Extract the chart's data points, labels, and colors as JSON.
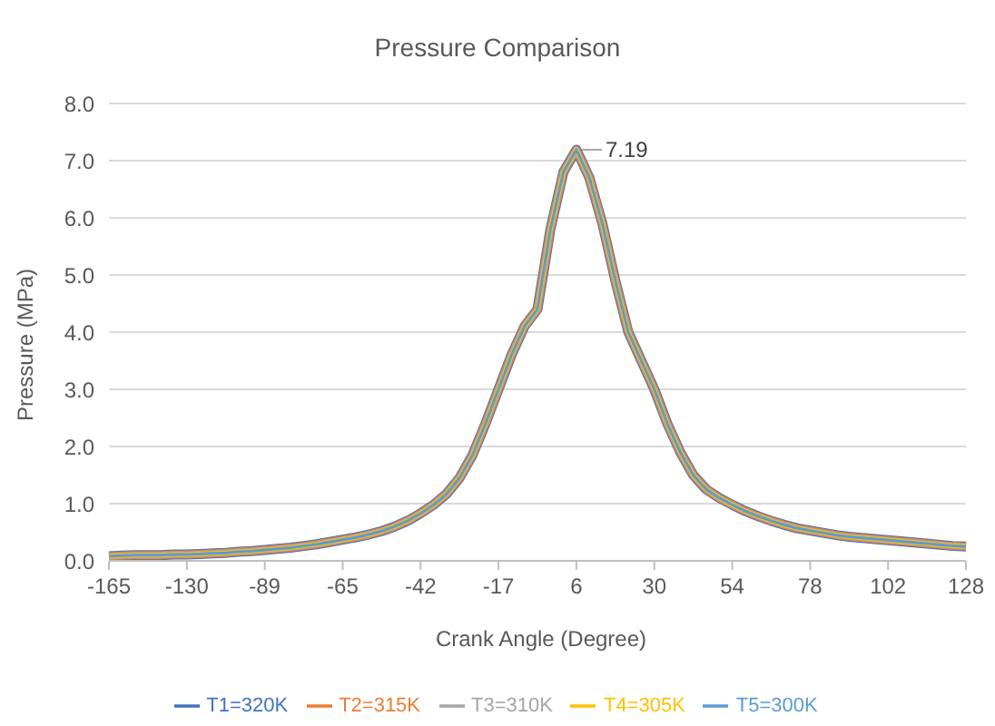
{
  "chart_data": {
    "type": "line",
    "title": "Pressure Comparison",
    "xlabel": "Crank Angle (Degree)",
    "ylabel": "Pressure (MPa)",
    "categories": [
      "-165",
      null,
      null,
      null,
      null,
      null,
      "-130",
      null,
      null,
      null,
      null,
      null,
      "-89",
      null,
      null,
      null,
      null,
      null,
      "-65",
      null,
      null,
      null,
      null,
      null,
      "-42",
      null,
      null,
      null,
      null,
      null,
      "-17",
      null,
      null,
      null,
      null,
      null,
      "6",
      null,
      null,
      null,
      null,
      null,
      "30",
      null,
      null,
      null,
      null,
      null,
      "54",
      null,
      null,
      null,
      null,
      null,
      "78",
      null,
      null,
      null,
      null,
      null,
      "102",
      null,
      null,
      null,
      null,
      null,
      "128"
    ],
    "series": [
      {
        "name": "T1=320K",
        "color": "#4472c4",
        "values": [
          0.08,
          0.09,
          0.1,
          0.1,
          0.1,
          0.11,
          0.11,
          0.12,
          0.13,
          0.14,
          0.16,
          0.17,
          0.19,
          0.21,
          0.23,
          0.26,
          0.29,
          0.33,
          0.37,
          0.41,
          0.46,
          0.52,
          0.6,
          0.7,
          0.83,
          0.98,
          1.17,
          1.45,
          1.85,
          2.4,
          3.0,
          3.6,
          4.1,
          4.4,
          5.8,
          6.8,
          7.19,
          6.7,
          5.9,
          4.9,
          4.0,
          3.5,
          3.0,
          2.4,
          1.9,
          1.5,
          1.25,
          1.1,
          0.98,
          0.87,
          0.78,
          0.7,
          0.63,
          0.57,
          0.53,
          0.49,
          0.45,
          0.42,
          0.4,
          0.38,
          0.36,
          0.34,
          0.32,
          0.3,
          0.28,
          0.26,
          0.25
        ]
      },
      {
        "name": "T2=315K",
        "color": "#ed7d31",
        "values": [
          0.08,
          0.09,
          0.1,
          0.1,
          0.1,
          0.11,
          0.11,
          0.12,
          0.13,
          0.14,
          0.16,
          0.17,
          0.19,
          0.21,
          0.23,
          0.26,
          0.29,
          0.33,
          0.37,
          0.41,
          0.46,
          0.52,
          0.6,
          0.7,
          0.83,
          0.98,
          1.17,
          1.45,
          1.85,
          2.4,
          3.0,
          3.6,
          4.1,
          4.4,
          5.8,
          6.8,
          7.19,
          6.7,
          5.9,
          4.9,
          4.0,
          3.5,
          3.0,
          2.4,
          1.9,
          1.5,
          1.25,
          1.1,
          0.98,
          0.87,
          0.78,
          0.7,
          0.63,
          0.57,
          0.53,
          0.49,
          0.45,
          0.42,
          0.4,
          0.38,
          0.36,
          0.34,
          0.32,
          0.3,
          0.28,
          0.26,
          0.25
        ]
      },
      {
        "name": "T3=310K",
        "color": "#a5a5a5",
        "values": [
          0.08,
          0.09,
          0.1,
          0.1,
          0.1,
          0.11,
          0.11,
          0.12,
          0.13,
          0.14,
          0.16,
          0.17,
          0.19,
          0.21,
          0.23,
          0.26,
          0.29,
          0.33,
          0.37,
          0.41,
          0.46,
          0.52,
          0.6,
          0.7,
          0.83,
          0.98,
          1.17,
          1.45,
          1.85,
          2.4,
          3.0,
          3.6,
          4.1,
          4.4,
          5.8,
          6.8,
          7.19,
          6.7,
          5.9,
          4.9,
          4.0,
          3.5,
          3.0,
          2.4,
          1.9,
          1.5,
          1.25,
          1.1,
          0.98,
          0.87,
          0.78,
          0.7,
          0.63,
          0.57,
          0.53,
          0.49,
          0.45,
          0.42,
          0.4,
          0.38,
          0.36,
          0.34,
          0.32,
          0.3,
          0.28,
          0.26,
          0.25
        ]
      },
      {
        "name": "T4=305K",
        "color": "#ffc000",
        "values": [
          0.08,
          0.09,
          0.1,
          0.1,
          0.1,
          0.11,
          0.11,
          0.12,
          0.13,
          0.14,
          0.16,
          0.17,
          0.19,
          0.21,
          0.23,
          0.26,
          0.29,
          0.33,
          0.37,
          0.41,
          0.46,
          0.52,
          0.6,
          0.7,
          0.83,
          0.98,
          1.17,
          1.45,
          1.85,
          2.4,
          3.0,
          3.6,
          4.1,
          4.4,
          5.8,
          6.8,
          7.19,
          6.7,
          5.9,
          4.9,
          4.0,
          3.5,
          3.0,
          2.4,
          1.9,
          1.5,
          1.25,
          1.1,
          0.98,
          0.87,
          0.78,
          0.7,
          0.63,
          0.57,
          0.53,
          0.49,
          0.45,
          0.42,
          0.4,
          0.38,
          0.36,
          0.34,
          0.32,
          0.3,
          0.28,
          0.26,
          0.25
        ]
      },
      {
        "name": "T5=300K",
        "color": "#5b9bd5",
        "values": [
          0.08,
          0.09,
          0.1,
          0.1,
          0.1,
          0.11,
          0.11,
          0.12,
          0.13,
          0.14,
          0.16,
          0.17,
          0.19,
          0.21,
          0.23,
          0.26,
          0.29,
          0.33,
          0.37,
          0.41,
          0.46,
          0.52,
          0.6,
          0.7,
          0.83,
          0.98,
          1.17,
          1.45,
          1.85,
          2.4,
          3.0,
          3.6,
          4.1,
          4.4,
          5.8,
          6.8,
          7.19,
          6.7,
          5.9,
          4.9,
          4.0,
          3.5,
          3.0,
          2.4,
          1.9,
          1.5,
          1.25,
          1.1,
          0.98,
          0.87,
          0.78,
          0.7,
          0.63,
          0.57,
          0.53,
          0.49,
          0.45,
          0.42,
          0.4,
          0.38,
          0.36,
          0.34,
          0.32,
          0.3,
          0.28,
          0.26,
          0.25
        ],
        "value_labels": [
          null,
          null,
          null,
          null,
          null,
          null,
          null,
          null,
          null,
          null,
          null,
          null,
          null,
          null,
          null,
          null,
          null,
          null,
          null,
          null,
          null,
          null,
          null,
          null,
          null,
          null,
          null,
          null,
          null,
          null,
          null,
          null,
          null,
          null,
          null,
          null,
          "7.19",
          null,
          null,
          null,
          null,
          null,
          null,
          null,
          null,
          null,
          null,
          null,
          null,
          null,
          null,
          null,
          null,
          null,
          null,
          null,
          null,
          null,
          null,
          null,
          null,
          null,
          null,
          null,
          null,
          null,
          null
        ]
      }
    ],
    "ylim": [
      0,
      8
    ],
    "yticks": [
      {
        "value": 0,
        "label": "0.0"
      },
      {
        "value": 1,
        "label": "1.0"
      },
      {
        "value": 2,
        "label": "2.0"
      },
      {
        "value": 3,
        "label": "3.0"
      },
      {
        "value": 4,
        "label": "4.0"
      },
      {
        "value": 5,
        "label": "5.0"
      },
      {
        "value": 6,
        "label": "6.0"
      },
      {
        "value": 7,
        "label": "7.0"
      },
      {
        "value": 8,
        "label": "8.0"
      }
    ],
    "grid": "y",
    "legend": "bottom",
    "marker": "none",
    "line_style": "solid"
  }
}
